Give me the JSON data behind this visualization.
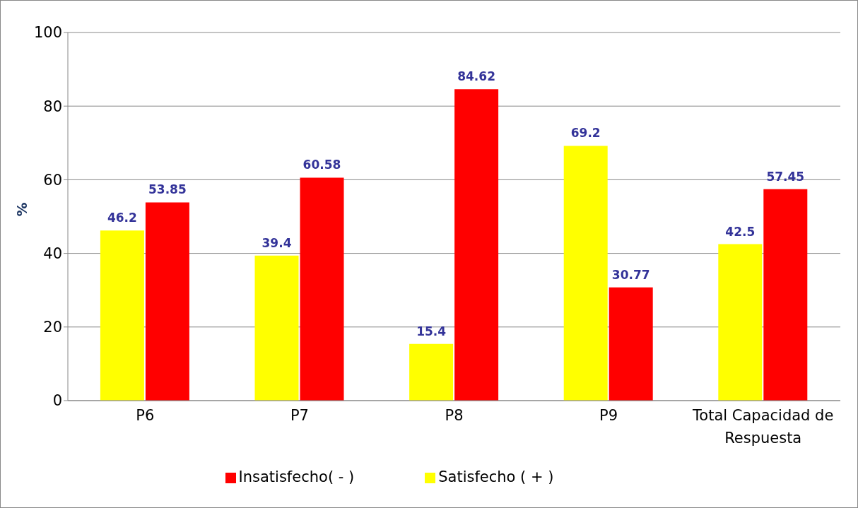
{
  "chart_data": {
    "type": "bar",
    "ylabel": "%",
    "categories": [
      "P6",
      "P7",
      "P8",
      "P9",
      "Total Capacidad de Respuesta"
    ],
    "series": [
      {
        "name": "Satisfecho ( + )",
        "color": "#ffff00",
        "values": [
          46.2,
          39.4,
          15.4,
          69.2,
          42.5
        ]
      },
      {
        "name": "Insatisfecho( - )",
        "color": "#ff0000",
        "values": [
          53.85,
          60.58,
          84.62,
          30.77,
          57.45
        ]
      }
    ],
    "ylim": [
      0,
      100
    ],
    "yticks": [
      0,
      20,
      40,
      60,
      80,
      100
    ],
    "grid": "y",
    "legend": "bottom",
    "data_labels": true
  }
}
